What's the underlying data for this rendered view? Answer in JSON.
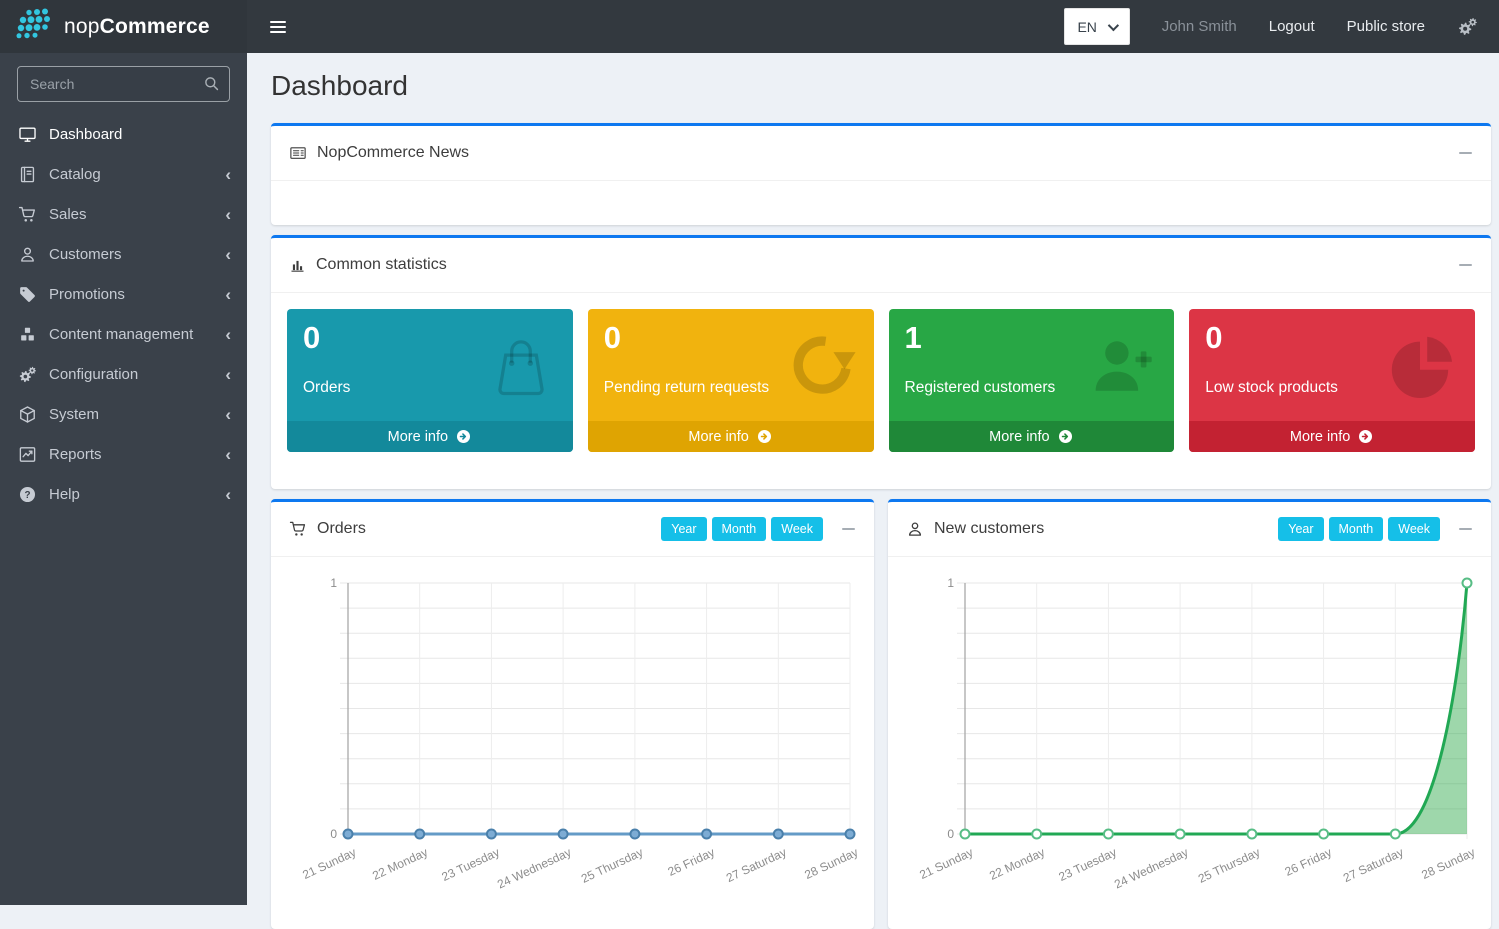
{
  "topbar": {
    "brand": {
      "prefix": "nop",
      "suffix": "Commerce",
      "logo_icon": "dots-logo-icon"
    },
    "menu_icon": "hamburger-icon",
    "language_select": {
      "value": "EN"
    },
    "user_name": "John Smith",
    "logout_label": "Logout",
    "public_store_label": "Public store",
    "settings_icon": "gears-icon"
  },
  "sidebar": {
    "search": {
      "placeholder": "Search",
      "icon": "search-icon"
    },
    "items": [
      {
        "label": "Dashboard",
        "icon": "monitor-icon",
        "active": true,
        "expandable": false
      },
      {
        "label": "Catalog",
        "icon": "book-icon",
        "active": false,
        "expandable": true
      },
      {
        "label": "Sales",
        "icon": "cart-icon",
        "active": false,
        "expandable": true
      },
      {
        "label": "Customers",
        "icon": "person-icon",
        "active": false,
        "expandable": true
      },
      {
        "label": "Promotions",
        "icon": "tag-icon",
        "active": false,
        "expandable": true
      },
      {
        "label": "Content management",
        "icon": "cubes-icon",
        "active": false,
        "expandable": true
      },
      {
        "label": "Configuration",
        "icon": "gears-icon",
        "active": false,
        "expandable": true
      },
      {
        "label": "System",
        "icon": "box-icon",
        "active": false,
        "expandable": true
      },
      {
        "label": "Reports",
        "icon": "chart-line-icon",
        "active": false,
        "expandable": true
      },
      {
        "label": "Help",
        "icon": "question-icon",
        "active": false,
        "expandable": true
      }
    ]
  },
  "page": {
    "title": "Dashboard"
  },
  "panels": {
    "news": {
      "title": "NopCommerce News",
      "icon": "newspaper-icon"
    },
    "stats": {
      "title": "Common statistics",
      "icon": "bar-chart-icon",
      "cards": [
        {
          "value": "0",
          "label": "Orders",
          "icon": "shopping-bag-icon",
          "more_info": "More info",
          "more_icon": "arrow-circle-right-icon",
          "color": "#1899ac",
          "footer_color": "#13899b"
        },
        {
          "value": "0",
          "label": "Pending return requests",
          "icon": "refresh-icon",
          "more_info": "More info",
          "more_icon": "arrow-circle-right-icon",
          "color": "#f1b30e",
          "footer_color": "#dfa402"
        },
        {
          "value": "1",
          "label": "Registered customers",
          "icon": "person-plus-icon",
          "more_info": "More info",
          "more_icon": "arrow-circle-right-icon",
          "color": "#28a745",
          "footer_color": "#1f8838"
        },
        {
          "value": "0",
          "label": "Low stock products",
          "icon": "pie-chart-icon",
          "more_info": "More info",
          "more_icon": "arrow-circle-right-icon",
          "color": "#dc3545",
          "footer_color": "#c32232"
        }
      ]
    }
  },
  "chart_data": [
    {
      "type": "line",
      "title": "Orders",
      "panel_icon": "cart-icon",
      "range_buttons": [
        "Year",
        "Month",
        "Week"
      ],
      "categories": [
        "21 Sunday",
        "22 Monday",
        "23 Tuesday",
        "24 Wednesday",
        "25 Thursday",
        "26 Friday",
        "27 Saturday",
        "28 Sunday"
      ],
      "values": [
        0,
        0,
        0,
        0,
        0,
        0,
        0,
        0
      ],
      "xlabel": "",
      "ylabel": "",
      "ylim": [
        0,
        1
      ],
      "yticks": [
        0,
        1
      ],
      "grid": true,
      "legend": "none",
      "smooth": false,
      "line_color": "#649bc7",
      "marker_fill": "#7dacd4",
      "marker_stroke": "#4a80ab",
      "area_fill": "none"
    },
    {
      "type": "line",
      "title": "New customers",
      "panel_icon": "person-icon",
      "range_buttons": [
        "Year",
        "Month",
        "Week"
      ],
      "categories": [
        "21 Sunday",
        "22 Monday",
        "23 Tuesday",
        "24 Wednesday",
        "25 Thursday",
        "26 Friday",
        "27 Saturday",
        "28 Sunday"
      ],
      "values": [
        0,
        0,
        0,
        0,
        0,
        0,
        0,
        1
      ],
      "xlabel": "",
      "ylabel": "",
      "ylim": [
        0,
        1
      ],
      "yticks": [
        0,
        1
      ],
      "grid": true,
      "legend": "none",
      "smooth": true,
      "line_color": "#21a854",
      "marker_fill": "#ffffff",
      "marker_stroke": "#57bd85",
      "area_fill": "rgba(40,167,69,0.45)"
    }
  ],
  "ui_colors": {
    "panel_accent": "#0d78f0",
    "chart_button": "#15bfe8",
    "brand_dot": "#32c6e0",
    "topbar_bg": "#33393f",
    "sidebar_bg": "#3a414a"
  }
}
